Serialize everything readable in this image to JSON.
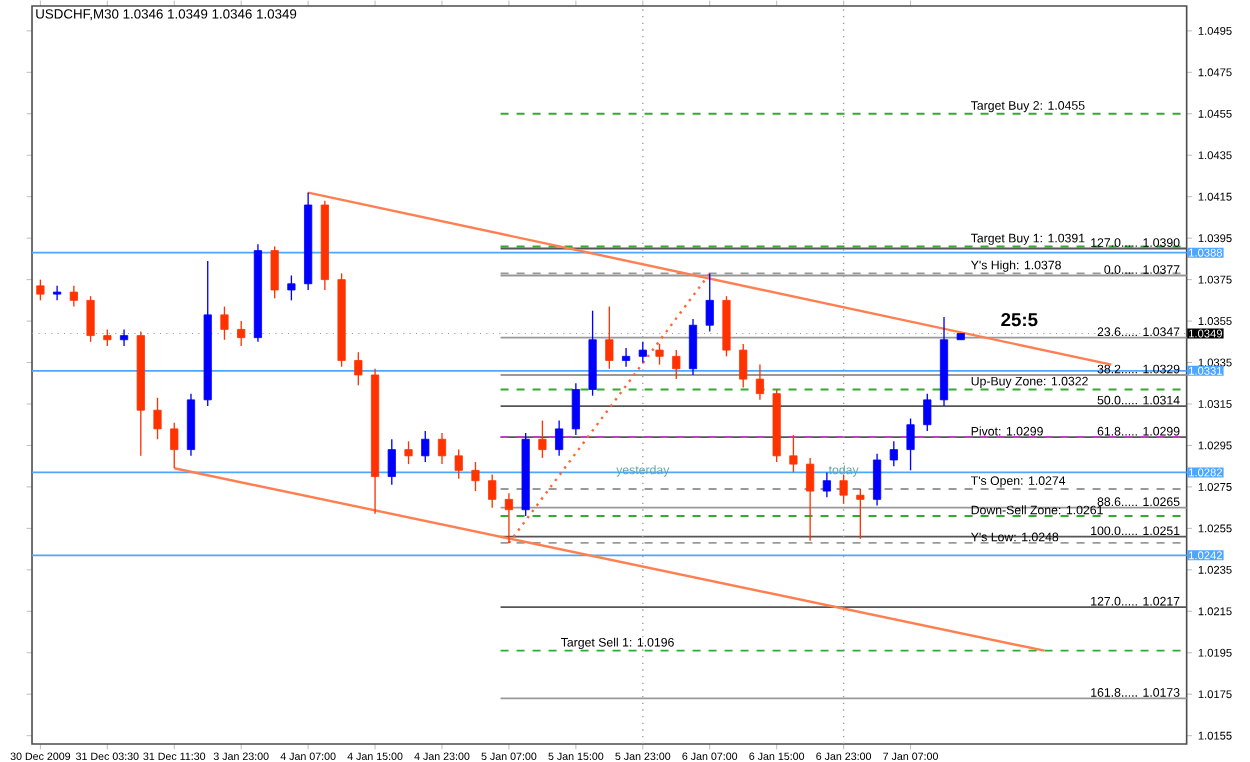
{
  "chart_data": {
    "type": "candlestick",
    "title": "USDCHF,M30 1.0346 1.0349 1.0346 1.0349",
    "categories": [
      "30 Dec 2009",
      null,
      null,
      null,
      "31 Dec 03:30",
      null,
      null,
      null,
      "31 Dec 11:30",
      null,
      null,
      null,
      "3 Jan 23:00",
      null,
      null,
      null,
      "4 Jan 07:00",
      null,
      null,
      null,
      "4 Jan 15:00",
      null,
      null,
      null,
      "4 Jan 23:00",
      null,
      null,
      null,
      "5 Jan 07:00",
      null,
      null,
      null,
      "5 Jan 15:00",
      null,
      null,
      null,
      "5 Jan 23:00",
      null,
      null,
      null,
      "6 Jan 07:00",
      null,
      null,
      null,
      "6 Jan 15:00",
      null,
      null,
      null,
      "6 Jan 23:00",
      null,
      null,
      null,
      "7 Jan 07:00",
      null,
      null,
      null,
      null,
      null,
      null,
      null,
      null,
      null,
      null,
      null,
      null,
      null,
      null,
      null,
      null
    ],
    "ohlc": [
      [
        1.0372,
        1.0375,
        1.0365,
        1.0368
      ],
      [
        1.0368,
        1.0372,
        1.0365,
        1.0369
      ],
      [
        1.0369,
        1.0372,
        1.0362,
        1.0365
      ],
      [
        1.0365,
        1.0367,
        1.0345,
        1.0348
      ],
      [
        1.0348,
        1.0351,
        1.0343,
        1.0346
      ],
      [
        1.0346,
        1.0351,
        1.0343,
        1.0348
      ],
      [
        1.0348,
        1.035,
        1.029,
        1.0312
      ],
      [
        1.0312,
        1.0318,
        1.0298,
        1.0303
      ],
      [
        1.0303,
        1.0306,
        1.0284,
        1.0293
      ],
      [
        1.0293,
        1.032,
        1.029,
        1.0317
      ],
      [
        1.0317,
        1.0384,
        1.0314,
        1.0358
      ],
      [
        1.0358,
        1.0362,
        1.0346,
        1.0351
      ],
      [
        1.0351,
        1.0355,
        1.0343,
        1.0347
      ],
      [
        1.0347,
        1.0392,
        1.0345,
        1.0389
      ],
      [
        1.0389,
        1.0391,
        1.0366,
        1.037
      ],
      [
        1.037,
        1.0377,
        1.0365,
        1.0373
      ],
      [
        1.0373,
        1.0417,
        1.037,
        1.0411
      ],
      [
        1.0411,
        1.0413,
        1.037,
        1.0375
      ],
      [
        1.0375,
        1.0378,
        1.0333,
        1.0336
      ],
      [
        1.0336,
        1.034,
        1.0324,
        1.0329
      ],
      [
        1.0329,
        1.0332,
        1.0262,
        1.028
      ],
      [
        1.028,
        1.0298,
        1.0276,
        1.0293
      ],
      [
        1.0293,
        1.0297,
        1.0286,
        1.029
      ],
      [
        1.029,
        1.0302,
        1.0287,
        1.0298
      ],
      [
        1.0298,
        1.0301,
        1.0286,
        1.029
      ],
      [
        1.029,
        1.0293,
        1.0279,
        1.0283
      ],
      [
        1.0283,
        1.0287,
        1.0273,
        1.0278
      ],
      [
        1.0278,
        1.0281,
        1.0265,
        1.0269
      ],
      [
        1.0269,
        1.0272,
        1.0248,
        1.0264
      ],
      [
        1.0264,
        1.0301,
        1.0261,
        1.0298
      ],
      [
        1.0298,
        1.0307,
        1.0289,
        1.0293
      ],
      [
        1.0293,
        1.0307,
        1.029,
        1.0303
      ],
      [
        1.0303,
        1.0325,
        1.03,
        1.0322
      ],
      [
        1.0322,
        1.036,
        1.0319,
        1.0346
      ],
      [
        1.0346,
        1.0362,
        1.0332,
        1.0336
      ],
      [
        1.0336,
        1.0342,
        1.0333,
        1.0338
      ],
      [
        1.0338,
        1.0345,
        1.0335,
        1.0341
      ],
      [
        1.0341,
        1.0344,
        1.0334,
        1.0338
      ],
      [
        1.0338,
        1.0341,
        1.0327,
        1.0332
      ],
      [
        1.0332,
        1.0356,
        1.0329,
        1.0353
      ],
      [
        1.0353,
        1.0378,
        1.035,
        1.0365
      ],
      [
        1.0365,
        1.0367,
        1.0338,
        1.0341
      ],
      [
        1.0341,
        1.0344,
        1.0323,
        1.0327
      ],
      [
        1.0327,
        1.0334,
        1.0317,
        1.032
      ],
      [
        1.032,
        1.0322,
        1.0287,
        1.029
      ],
      [
        1.029,
        1.03,
        1.0282,
        1.0286
      ],
      [
        1.0286,
        1.0289,
        1.0249,
        1.0273
      ],
      [
        1.0273,
        1.0282,
        1.027,
        1.0278
      ],
      [
        1.0278,
        1.0281,
        1.0267,
        1.0271
      ],
      [
        1.0271,
        1.0274,
        1.025,
        1.0269
      ],
      [
        1.0269,
        1.0291,
        1.0266,
        1.0288
      ],
      [
        1.0288,
        1.0297,
        1.0285,
        1.0293
      ],
      [
        1.0293,
        1.0308,
        1.0283,
        1.0305
      ],
      [
        1.0305,
        1.032,
        1.0302,
        1.0317
      ],
      [
        1.0317,
        1.0357,
        1.0314,
        1.0346
      ],
      [
        1.0346,
        1.0349,
        1.0346,
        1.0349
      ],
      null,
      null,
      null,
      null,
      null,
      null,
      null,
      null,
      null,
      null,
      null,
      null,
      null
    ],
    "colors": [
      "#ff3300",
      "#0000ff",
      "#ff3300",
      "#ff3300",
      "#ff3300",
      "#0000ff",
      "#ff3300",
      "#ff3300",
      "#ff3300",
      "#0000ff",
      "#0000ff",
      "#ff3300",
      "#ff3300",
      "#0000ff",
      "#ff3300",
      "#0000ff",
      "#0000ff",
      "#ff3300",
      "#ff3300",
      "#ff3300",
      "#ff3300",
      "#0000ff",
      "#ff3300",
      "#0000ff",
      "#ff3300",
      "#ff3300",
      "#ff3300",
      "#ff3300",
      "#ff3300",
      "#0000ff",
      "#ff3300",
      "#0000ff",
      "#0000ff",
      "#0000ff",
      "#ff3300",
      "#0000ff",
      "#0000ff",
      "#ff3300",
      "#ff3300",
      "#0000ff",
      "#0000ff",
      "#ff3300",
      "#ff3300",
      "#ff3300",
      "#ff3300",
      "#ff3300",
      "#ff3300",
      "#0000ff",
      "#ff3300",
      "#ff3300",
      "#0000ff",
      "#0000ff",
      "#0000ff",
      "#0000ff",
      "#0000ff",
      "#0000ff",
      null,
      null,
      null,
      null,
      null,
      null,
      null,
      null,
      null,
      null,
      null,
      null,
      null
    ],
    "series": [
      {
        "type": "line",
        "color": "#ff7f50",
        "line_style": "solid",
        "values": [
          null,
          null,
          null,
          null,
          null,
          null,
          null,
          null,
          null,
          null,
          null,
          null,
          null,
          null,
          null,
          null,
          1.0417,
          null,
          null,
          null,
          null,
          null,
          null,
          null,
          null,
          null,
          null,
          null,
          null,
          null,
          null,
          null,
          null,
          null,
          null,
          null,
          null,
          null,
          null,
          null,
          null,
          null,
          null,
          null,
          null,
          null,
          null,
          null,
          null,
          null,
          null,
          null,
          null,
          null,
          null,
          null,
          null,
          null,
          null,
          null,
          null,
          null,
          null,
          null,
          1.0334,
          null,
          null,
          null,
          null
        ]
      },
      {
        "type": "line",
        "color": "#ff7f50",
        "line_style": "solid",
        "values": [
          null,
          null,
          null,
          null,
          null,
          null,
          null,
          null,
          1.0284,
          null,
          null,
          null,
          null,
          null,
          null,
          null,
          null,
          null,
          null,
          null,
          null,
          null,
          null,
          null,
          null,
          null,
          null,
          null,
          null,
          null,
          null,
          null,
          null,
          null,
          null,
          null,
          null,
          null,
          null,
          null,
          null,
          null,
          null,
          null,
          null,
          null,
          null,
          null,
          null,
          null,
          null,
          null,
          null,
          null,
          null,
          null,
          null,
          null,
          null,
          null,
          1.0196,
          null,
          null,
          null,
          null,
          null,
          null,
          null,
          null
        ]
      },
      {
        "type": "line",
        "color": "#ff6633",
        "line_style": "dotted",
        "values": [
          null,
          null,
          null,
          null,
          null,
          null,
          null,
          null,
          null,
          null,
          null,
          null,
          null,
          null,
          null,
          null,
          null,
          null,
          null,
          null,
          null,
          null,
          null,
          null,
          null,
          null,
          null,
          null,
          1.0248,
          null,
          null,
          null,
          null,
          null,
          null,
          null,
          null,
          null,
          null,
          null,
          1.0378,
          null,
          null,
          null,
          null,
          null,
          null,
          null,
          null,
          null,
          null,
          null,
          null,
          null,
          null,
          null,
          null,
          null,
          null,
          null,
          null,
          null,
          null,
          null,
          null,
          null,
          null,
          null,
          null
        ]
      }
    ],
    "ylim": [
      1.0151,
      1.0507
    ],
    "yticks": [
      1.0495,
      1.0475,
      1.0455,
      1.0435,
      1.0415,
      1.0395,
      1.0375,
      1.0355,
      1.0335,
      1.0315,
      1.0295,
      1.0275,
      1.0255,
      1.0235,
      1.0215,
      1.0195,
      1.0175,
      1.0155
    ],
    "ref_lines": [
      {
        "axis": "y",
        "value": 1.0455,
        "label": "Target Buy 2: 1.0455",
        "color": "#33aa33",
        "line_style": "dashed"
      },
      {
        "axis": "y",
        "value": 1.0391,
        "label": "Target Buy 1: 1.0391",
        "color": "#33aa33",
        "line_style": "dashed"
      },
      {
        "axis": "y",
        "value": 1.039,
        "label": "127.0..... 1.0390",
        "color": "#555555",
        "line_style": "solid"
      },
      {
        "axis": "y",
        "value": 1.0388,
        "label": "1.0388",
        "color": "#4da6ff",
        "line_style": "solid"
      },
      {
        "axis": "y",
        "value": 1.0378,
        "label": "Y's High: 1.0378",
        "color": "#999999",
        "line_style": "dashed"
      },
      {
        "axis": "y",
        "value": 1.0377,
        "label": "0.0..... 1.0377",
        "color": "#999999",
        "line_style": "solid"
      },
      {
        "axis": "y",
        "value": 1.0349,
        "label": "1.0349",
        "color": "#999999",
        "line_style": "dotted"
      },
      {
        "axis": "y",
        "value": 1.0347,
        "label": "23.6..... 1.0347",
        "color": "#999999",
        "line_style": "solid"
      },
      {
        "axis": "y",
        "value": 1.0331,
        "label": "1.0331",
        "color": "#4da6ff",
        "line_style": "solid"
      },
      {
        "axis": "y",
        "value": 1.0329,
        "label": "38.2..... 1.0329",
        "color": "#999999",
        "line_style": "solid"
      },
      {
        "axis": "y",
        "value": 1.0322,
        "label": "Up-Buy Zone: 1.0322",
        "color": "#33aa33",
        "line_style": "dashed"
      },
      {
        "axis": "y",
        "value": 1.0314,
        "label": "50.0..... 1.0314",
        "color": "#555555",
        "line_style": "solid"
      },
      {
        "axis": "y",
        "value": 1.0299,
        "label": "61.8..... 1.0299",
        "color": "#555555",
        "line_style": "solid"
      },
      {
        "axis": "y",
        "value": 1.0299,
        "label": "Pivot: 1.0299",
        "color": "#cc33cc",
        "line_style": "dashed"
      },
      {
        "axis": "y",
        "value": 1.0282,
        "label": "1.0282",
        "color": "#4da6ff",
        "line_style": "solid"
      },
      {
        "axis": "y",
        "value": 1.0274,
        "label": "T's Open: 1.0274",
        "color": "#999999",
        "line_style": "dashed"
      },
      {
        "axis": "y",
        "value": 1.0265,
        "label": "88.6..... 1.0265",
        "color": "#999999",
        "line_style": "solid"
      },
      {
        "axis": "y",
        "value": 1.0261,
        "label": "Down-Sell Zone: 1.0261",
        "color": "#33aa33",
        "line_style": "dashed"
      },
      {
        "axis": "y",
        "value": 1.0251,
        "label": "100.0..... 1.0251",
        "color": "#555555",
        "line_style": "solid"
      },
      {
        "axis": "y",
        "value": 1.0248,
        "label": "Y's Low: 1.0248",
        "color": "#999999",
        "line_style": "dashed"
      },
      {
        "axis": "y",
        "value": 1.0242,
        "label": "1.0242",
        "color": "#4da6ff",
        "line_style": "solid"
      },
      {
        "axis": "y",
        "value": 1.0217,
        "label": "127.0..... 1.0217",
        "color": "#555555",
        "line_style": "solid"
      },
      {
        "axis": "y",
        "value": 1.0196,
        "label": "Target Sell 1: 1.0196",
        "color": "#33aa33",
        "line_style": "dashed"
      },
      {
        "axis": "y",
        "value": 1.0173,
        "label": "161.8..... 1.0173",
        "color": "#999999",
        "line_style": "solid"
      },
      {
        "axis": "x",
        "value": "5 Jan 23:00",
        "color": "#999999",
        "line_style": "dotted"
      },
      {
        "axis": "x",
        "value": "6 Jan 23:00",
        "color": "#999999",
        "line_style": "dotted"
      }
    ],
    "annotations": [
      "yesterday",
      "today",
      "25:5"
    ],
    "grid": false
  }
}
